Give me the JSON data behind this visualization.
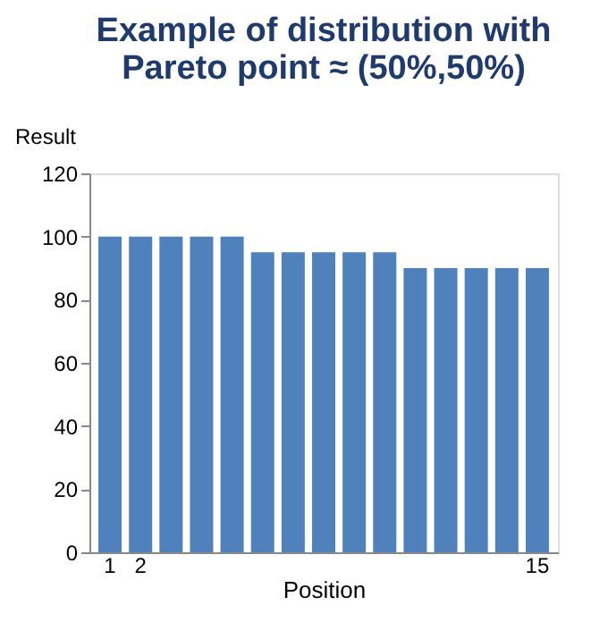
{
  "chart_data": {
    "type": "bar",
    "title": "Example of distribution with\nPareto point   ≈ (50%,50%)",
    "xlabel": "Position",
    "ylabel": "Result",
    "categories": [
      "1",
      "2",
      null,
      null,
      null,
      null,
      null,
      null,
      null,
      null,
      null,
      null,
      null,
      null,
      "15"
    ],
    "values": [
      100,
      100,
      100,
      100,
      100,
      95,
      95,
      95,
      95,
      95,
      90,
      90,
      90,
      90,
      90
    ],
    "color": "#4f81bd",
    "ylim": [
      0,
      120
    ],
    "yticks": [
      0,
      20,
      40,
      60,
      80,
      100,
      120
    ],
    "grid": false
  }
}
